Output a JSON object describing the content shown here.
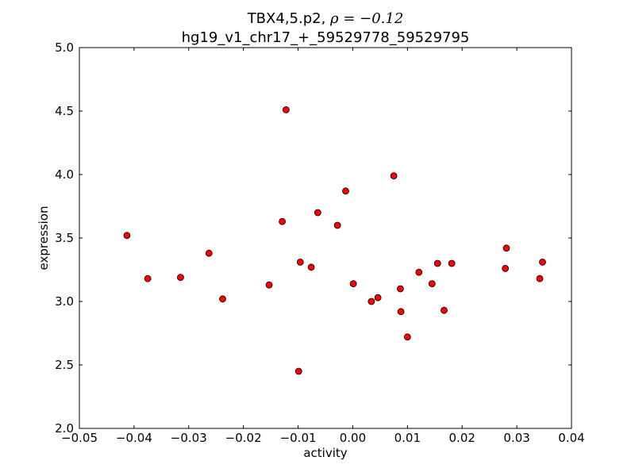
{
  "chart_data": {
    "type": "scatter",
    "title_line1": "TBX4,5.p2, ",
    "title_rho": "ρ = −0.12",
    "title_line2": "hg19_v1_chr17_+_59529778_59529795",
    "xlabel": "activity",
    "ylabel": "expression",
    "xlim": [
      -0.05,
      0.04
    ],
    "ylim": [
      2.0,
      5.0
    ],
    "x_ticks": [
      -0.05,
      -0.04,
      -0.03,
      -0.02,
      -0.01,
      0.0,
      0.01,
      0.02,
      0.03,
      0.04
    ],
    "x_tick_labels": [
      "−0.05",
      "−0.04",
      "−0.03",
      "−0.02",
      "−0.01",
      "0.00",
      "0.01",
      "0.02",
      "0.03",
      "0.04"
    ],
    "y_ticks": [
      2.0,
      2.5,
      3.0,
      3.5,
      4.0,
      4.5,
      5.0
    ],
    "y_tick_labels": [
      "2.0",
      "2.5",
      "3.0",
      "3.5",
      "4.0",
      "4.5",
      "5.0"
    ],
    "grid": false,
    "marker_color": "#ff0000",
    "marker_edge_color": "#000000",
    "points": [
      {
        "x": -0.0413,
        "y": 3.52
      },
      {
        "x": -0.0375,
        "y": 3.18
      },
      {
        "x": -0.0315,
        "y": 3.19
      },
      {
        "x": -0.0263,
        "y": 3.38
      },
      {
        "x": -0.0238,
        "y": 3.02
      },
      {
        "x": -0.0153,
        "y": 3.13
      },
      {
        "x": -0.0129,
        "y": 3.63
      },
      {
        "x": -0.0122,
        "y": 4.51
      },
      {
        "x": -0.0099,
        "y": 2.45
      },
      {
        "x": -0.0096,
        "y": 3.31
      },
      {
        "x": -0.0076,
        "y": 3.27
      },
      {
        "x": -0.0064,
        "y": 3.7
      },
      {
        "x": -0.0028,
        "y": 3.6
      },
      {
        "x": -0.0013,
        "y": 3.87
      },
      {
        "x": 0.0001,
        "y": 3.14
      },
      {
        "x": 0.0034,
        "y": 3.0
      },
      {
        "x": 0.0046,
        "y": 3.03
      },
      {
        "x": 0.0075,
        "y": 3.99
      },
      {
        "x": 0.0087,
        "y": 3.1
      },
      {
        "x": 0.0088,
        "y": 2.92
      },
      {
        "x": 0.01,
        "y": 2.72
      },
      {
        "x": 0.0121,
        "y": 3.23
      },
      {
        "x": 0.0145,
        "y": 3.14
      },
      {
        "x": 0.0155,
        "y": 3.3
      },
      {
        "x": 0.0167,
        "y": 2.93
      },
      {
        "x": 0.0181,
        "y": 3.3
      },
      {
        "x": 0.0279,
        "y": 3.26
      },
      {
        "x": 0.0281,
        "y": 3.42
      },
      {
        "x": 0.0342,
        "y": 3.18
      },
      {
        "x": 0.0347,
        "y": 3.31
      }
    ]
  }
}
